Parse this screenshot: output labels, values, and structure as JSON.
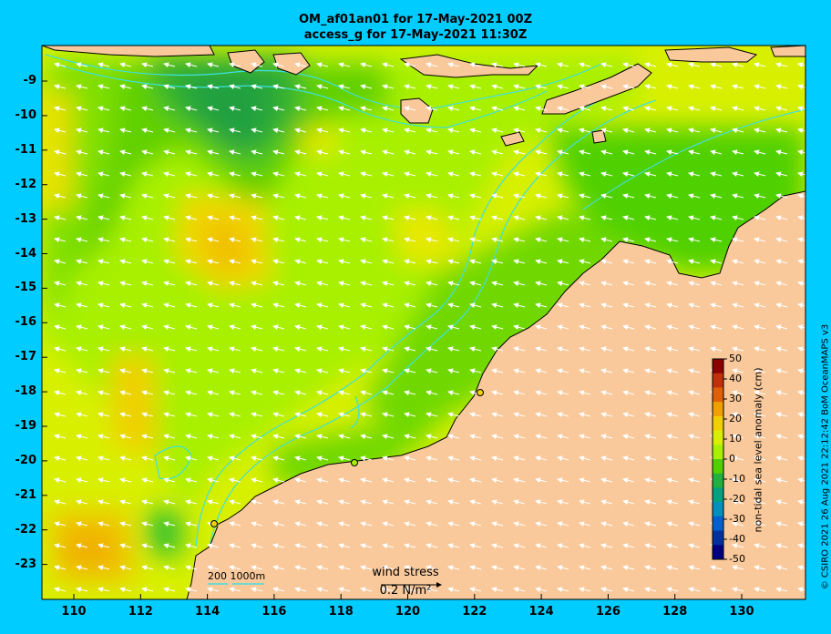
{
  "title_line1": "OM_af01an01 for 17-May-2021 00Z",
  "title_line2": "access_g for 17-May-2021 11:30Z",
  "lat_labels": [
    "-9",
    "-10",
    "-11",
    "-12",
    "-13",
    "-14",
    "-15",
    "-16",
    "-17",
    "-18",
    "-19",
    "-20",
    "-21",
    "-22",
    "-23"
  ],
  "lon_labels": [
    "110",
    "112",
    "114",
    "116",
    "118",
    "120",
    "122",
    "124",
    "126",
    "128",
    "130"
  ],
  "colorbar": {
    "label": "non-tidal sea level anomaly (cm)",
    "ticks": [
      "50",
      "40",
      "30",
      "20",
      "10",
      "0",
      "-10",
      "-20",
      "-30",
      "-40",
      "-50"
    ],
    "colors": [
      "#8b0000",
      "#c0300a",
      "#e0600a",
      "#f0a000",
      "#f0d000",
      "#d8f000",
      "#a8f000",
      "#50d000",
      "#20b040",
      "#00a080",
      "#0090c0",
      "#0060d0",
      "#0030a0",
      "#000080"
    ]
  },
  "wind_legend": {
    "title": "wind stress",
    "value": "0.2 N/m²"
  },
  "depth_legend": "200  1000m",
  "credit": "© CSIRO 2021  26 Aug 2021 22:12:42 BoM OceanMAPS v3",
  "colors": {
    "background": "#00ccff",
    "land": "#f9c99b",
    "coast": "#000000",
    "isobath": "#40e0e0"
  }
}
